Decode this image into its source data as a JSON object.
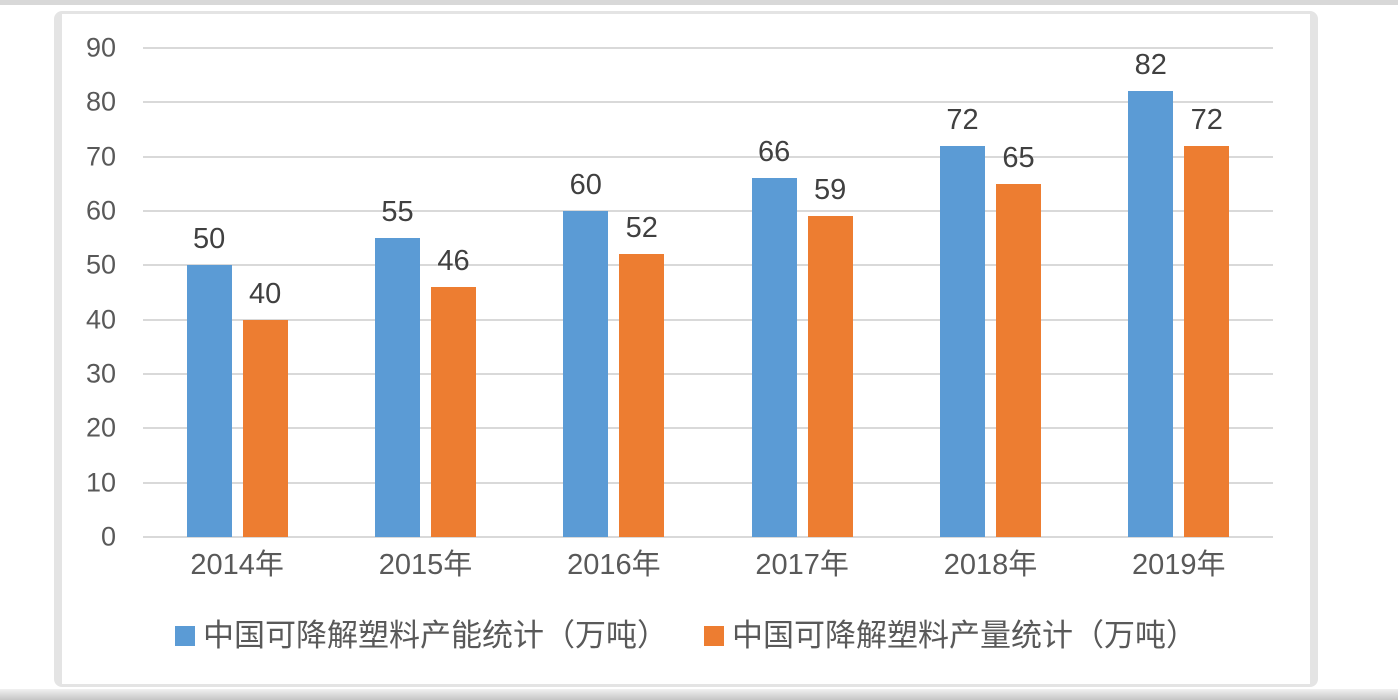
{
  "chart_data": {
    "type": "bar",
    "categories": [
      "2014年",
      "2015年",
      "2016年",
      "2017年",
      "2018年",
      "2019年"
    ],
    "series": [
      {
        "name": "中国可降解塑料产能统计（万吨）",
        "color": "#5B9BD5",
        "values": [
          50,
          55,
          60,
          66,
          72,
          82
        ]
      },
      {
        "name": "中国可降解塑料产量统计（万吨）",
        "color": "#ED7D31",
        "values": [
          40,
          46,
          52,
          59,
          65,
          72
        ]
      }
    ],
    "ylim": [
      0,
      90
    ],
    "yticks": [
      0,
      10,
      20,
      30,
      40,
      50,
      60,
      70,
      80,
      90
    ],
    "grid": "horizontal",
    "legend_position": "bottom",
    "data_labels": true
  },
  "colors": {
    "series_1": "#5B9BD5",
    "series_2": "#ED7D31",
    "gridline": "#D9D9D9",
    "axis_text": "#595959",
    "data_label_text": "#404040",
    "frame_border": "#E4E4E4"
  }
}
